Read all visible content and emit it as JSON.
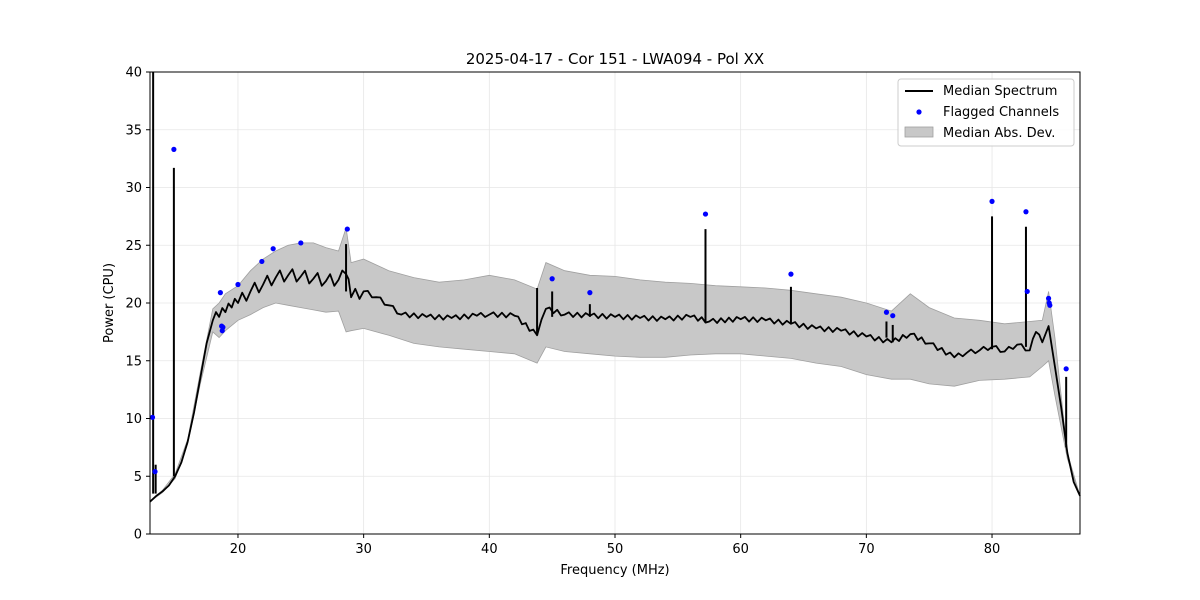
{
  "chart_data": {
    "type": "line",
    "title": "2025-04-17 - Cor 151 - LWA094 - Pol XX",
    "xlabel": "Frequency (MHz)",
    "ylabel": "Power (CPU)",
    "xlim": [
      13.0,
      87.0
    ],
    "ylim": [
      0,
      40
    ],
    "xticks": [
      20,
      30,
      40,
      50,
      60,
      70,
      80
    ],
    "yticks": [
      0,
      5,
      10,
      15,
      20,
      25,
      30,
      35,
      40
    ],
    "xtick_labels": [
      "20",
      "30",
      "40",
      "50",
      "60",
      "70",
      "80"
    ],
    "ytick_labels": [
      "0",
      "5",
      "10",
      "15",
      "20",
      "25",
      "30",
      "35",
      "40"
    ],
    "grid": true,
    "legend_position": "top-right",
    "colors": {
      "line": "#000000",
      "flagged": "#0000ff",
      "band": "#c8c8c8",
      "band_edge": "#a0a0a0"
    },
    "series": [
      {
        "name": "Median Spectrum",
        "kind": "line",
        "x": [
          13.0,
          13.5,
          14.0,
          14.5,
          15.0,
          15.5,
          16.0,
          16.5,
          17.0,
          17.5,
          18.0,
          18.5,
          19.0,
          19.5,
          20.0,
          21.0,
          22.0,
          23.0,
          24.0,
          25.0,
          26.0,
          27.0,
          28.0,
          28.6,
          29.0,
          30.0,
          31.0,
          32.0,
          33.0,
          35.0,
          37.0,
          39.0,
          40.0,
          42.0,
          43.8,
          44.5,
          46.0,
          48.0,
          50.0,
          52.0,
          54.0,
          56.0,
          57.5,
          60.0,
          62.0,
          64.0,
          66.0,
          68.0,
          70.0,
          72.0,
          73.5,
          75.0,
          77.0,
          78.0,
          79.0,
          80.0,
          81.0,
          82.0,
          83.0,
          83.5,
          84.0,
          84.5,
          85.0,
          85.5,
          86.0,
          86.5,
          87.0
        ],
        "y": [
          2.8,
          3.3,
          3.7,
          4.2,
          5.0,
          6.2,
          8.0,
          10.5,
          13.5,
          16.5,
          18.5,
          18.8,
          19.2,
          19.6,
          20.0,
          21.0,
          21.6,
          22.2,
          22.4,
          22.3,
          22.1,
          21.9,
          22.0,
          22.5,
          20.5,
          21.0,
          20.5,
          19.8,
          19.0,
          18.8,
          18.7,
          18.9,
          19.0,
          18.9,
          17.2,
          19.5,
          19.0,
          18.9,
          18.8,
          18.7,
          18.6,
          18.8,
          18.4,
          18.6,
          18.5,
          18.2,
          17.8,
          17.6,
          17.1,
          16.6,
          17.3,
          16.5,
          15.3,
          15.7,
          15.9,
          16.2,
          15.8,
          16.4,
          15.9,
          17.5,
          16.6,
          18.0,
          14.5,
          11.0,
          7.0,
          4.5,
          3.3
        ]
      },
      {
        "name": "Median Abs. Dev.",
        "kind": "band",
        "x": [
          13.0,
          14.0,
          15.0,
          16.0,
          17.0,
          18.0,
          18.5,
          19.0,
          20.0,
          21.0,
          22.0,
          23.0,
          24.0,
          25.0,
          26.0,
          27.0,
          28.0,
          28.6,
          29.0,
          30.0,
          32.0,
          34.0,
          36.0,
          38.0,
          40.0,
          42.0,
          43.8,
          44.5,
          46.0,
          48.0,
          50.0,
          52.0,
          54.0,
          56.0,
          58.0,
          60.0,
          62.0,
          64.0,
          66.0,
          68.0,
          70.0,
          72.0,
          73.5,
          75.0,
          77.0,
          79.0,
          81.0,
          83.0,
          84.0,
          84.5,
          85.0,
          86.0,
          87.0
        ],
        "upper": [
          2.8,
          3.8,
          5.2,
          8.2,
          14.0,
          19.5,
          20.0,
          20.8,
          21.5,
          22.8,
          23.8,
          24.5,
          25.0,
          25.2,
          25.2,
          24.8,
          24.5,
          26.5,
          23.5,
          23.8,
          22.8,
          22.2,
          21.8,
          22.0,
          22.4,
          22.0,
          21.2,
          23.5,
          22.8,
          22.4,
          22.3,
          22.0,
          21.8,
          21.7,
          21.5,
          21.4,
          21.3,
          21.1,
          20.8,
          20.5,
          20.0,
          19.3,
          20.8,
          19.6,
          18.7,
          18.5,
          18.2,
          18.4,
          18.5,
          21.0,
          17.0,
          7.0,
          3.3
        ],
        "lower": [
          2.8,
          3.6,
          4.8,
          7.8,
          13.0,
          17.5,
          17.0,
          17.6,
          18.5,
          19.0,
          19.6,
          20.0,
          19.8,
          19.6,
          19.4,
          19.2,
          19.3,
          17.5,
          17.6,
          17.8,
          17.2,
          16.5,
          16.2,
          16.0,
          15.8,
          15.6,
          14.8,
          16.2,
          15.8,
          15.6,
          15.4,
          15.3,
          15.3,
          15.5,
          15.6,
          15.6,
          15.4,
          15.2,
          14.8,
          14.5,
          13.8,
          13.4,
          13.4,
          13.0,
          12.8,
          13.3,
          13.4,
          13.6,
          14.5,
          15.0,
          12.0,
          6.5,
          3.3
        ]
      },
      {
        "name": "Flagged Channels",
        "kind": "scatter",
        "x": [
          13.2,
          13.4,
          14.9,
          18.6,
          18.7,
          18.75,
          18.8,
          20.0,
          21.9,
          22.8,
          25.0,
          28.7,
          45.0,
          48.0,
          57.2,
          64.0,
          71.6,
          72.1,
          80.0,
          82.7,
          82.8,
          84.5,
          84.55,
          84.6,
          85.9
        ],
        "y": [
          10.1,
          5.4,
          33.3,
          20.9,
          18.0,
          17.6,
          17.9,
          21.6,
          23.6,
          24.7,
          25.2,
          26.4,
          22.1,
          20.9,
          27.7,
          22.5,
          19.2,
          18.9,
          28.8,
          27.9,
          21.0,
          20.4,
          20.0,
          19.8,
          14.3
        ]
      }
    ],
    "spikes": [
      {
        "x": 13.25,
        "y0": 3.5,
        "y1": 40.0
      },
      {
        "x": 13.45,
        "y0": 3.5,
        "y1": 6.0
      },
      {
        "x": 14.9,
        "y0": 5.0,
        "y1": 31.7
      },
      {
        "x": 28.6,
        "y0": 21.0,
        "y1": 25.1
      },
      {
        "x": 43.8,
        "y0": 17.2,
        "y1": 21.3
      },
      {
        "x": 45.0,
        "y0": 18.8,
        "y1": 21.0
      },
      {
        "x": 48.0,
        "y0": 18.8,
        "y1": 19.9
      },
      {
        "x": 57.2,
        "y0": 18.3,
        "y1": 26.4
      },
      {
        "x": 64.0,
        "y0": 18.2,
        "y1": 21.4
      },
      {
        "x": 71.6,
        "y0": 17.0,
        "y1": 18.4
      },
      {
        "x": 72.1,
        "y0": 16.6,
        "y1": 18.1
      },
      {
        "x": 80.0,
        "y0": 16.0,
        "y1": 27.5
      },
      {
        "x": 82.7,
        "y0": 16.2,
        "y1": 26.6
      },
      {
        "x": 85.9,
        "y0": 7.5,
        "y1": 13.6
      }
    ]
  }
}
